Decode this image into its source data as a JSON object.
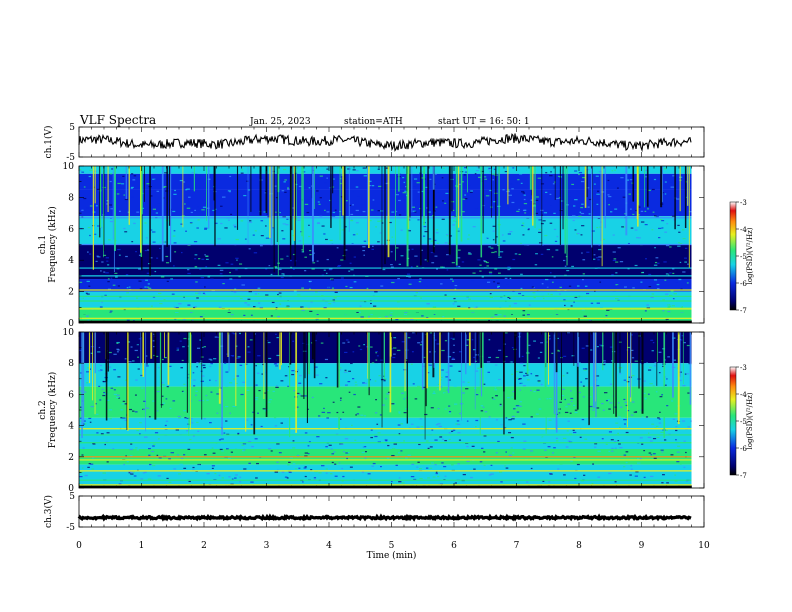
{
  "header": {
    "title": "VLF  Spectra",
    "date": "Jan. 25, 2023",
    "station": "station=ATH",
    "start": "start  UT  =   16: 50: 1"
  },
  "chart_data": [
    {
      "type": "line",
      "id": "ch1-waveform",
      "ylabel": "ch.1(V)",
      "ylim": [
        -5,
        5
      ],
      "yticks": [
        "5",
        "-5"
      ],
      "xlim": [
        0,
        10
      ],
      "trace_end_min": 9.8,
      "baseline_v": 0,
      "trace_color": "#000000"
    },
    {
      "type": "heatmap",
      "id": "ch1-spectrogram",
      "ylabel_line1": "ch.1",
      "ylabel_line2": "Frequency  (kHz)",
      "ylim": [
        0,
        10
      ],
      "yticks": [
        "10",
        "8",
        "6",
        "4",
        "2",
        "0"
      ],
      "xlim": [
        0,
        10
      ],
      "data_end_min": 9.8,
      "colorbar": {
        "label": "log(PSD)(V²/Hz)",
        "range": [
          -7,
          -3
        ],
        "ticks": [
          "-3",
          "-4",
          "-5",
          "-6",
          "-7"
        ]
      },
      "bands_khz": [
        {
          "from": 9.5,
          "to": 10.0,
          "level": "cyan"
        },
        {
          "from": 8.5,
          "to": 9.5,
          "level": "blue"
        },
        {
          "from": 6.8,
          "to": 8.5,
          "level": "blue"
        },
        {
          "from": 5.0,
          "to": 6.8,
          "level": "cyan"
        },
        {
          "from": 2.8,
          "to": 5.0,
          "level": "darkblue"
        },
        {
          "from": 2.0,
          "to": 2.8,
          "level": "blue"
        },
        {
          "from": 1.0,
          "to": 2.0,
          "level": "cyan"
        },
        {
          "from": 0.0,
          "to": 1.0,
          "level": "green"
        }
      ],
      "lines_khz": [
        {
          "f": 6.7,
          "level": "lightblue"
        },
        {
          "f": 5.0,
          "level": "lightblue"
        },
        {
          "f": 3.5,
          "level": "cyan"
        },
        {
          "f": 3.0,
          "level": "cyan"
        },
        {
          "f": 2.1,
          "level": "yellow"
        },
        {
          "f": 1.7,
          "level": "green"
        },
        {
          "f": 1.4,
          "level": "green"
        },
        {
          "f": 0.9,
          "level": "yellow"
        },
        {
          "f": 0.6,
          "level": "green"
        },
        {
          "f": 0.3,
          "level": "yellow"
        }
      ]
    },
    {
      "type": "heatmap",
      "id": "ch2-spectrogram",
      "ylabel_line1": "ch.2",
      "ylabel_line2": "Frequency  (kHz)",
      "ylim": [
        0,
        10
      ],
      "yticks": [
        "10",
        "8",
        "6",
        "4",
        "2",
        "0"
      ],
      "xlim": [
        0,
        10
      ],
      "data_end_min": 9.8,
      "colorbar": {
        "label": "log(PSD)(V²/Hz)",
        "range": [
          -7,
          -3
        ],
        "ticks": [
          "-3",
          "-4",
          "-5",
          "-6",
          "-7"
        ]
      },
      "bands_khz": [
        {
          "from": 8.0,
          "to": 10.0,
          "level": "darkblue"
        },
        {
          "from": 6.5,
          "to": 8.0,
          "level": "cyan"
        },
        {
          "from": 4.5,
          "to": 6.5,
          "level": "green"
        },
        {
          "from": 2.5,
          "to": 4.5,
          "level": "cyan"
        },
        {
          "from": 1.5,
          "to": 2.5,
          "level": "green"
        },
        {
          "from": 0.0,
          "to": 1.5,
          "level": "cyan"
        }
      ],
      "lines_khz": [
        {
          "f": 3.8,
          "level": "yellow"
        },
        {
          "f": 3.4,
          "level": "green"
        },
        {
          "f": 2.9,
          "level": "green"
        },
        {
          "f": 2.0,
          "level": "orange"
        },
        {
          "f": 1.8,
          "level": "yellow"
        },
        {
          "f": 1.1,
          "level": "yellow"
        },
        {
          "f": 0.5,
          "level": "green"
        },
        {
          "f": 0.2,
          "level": "yellow"
        }
      ]
    },
    {
      "type": "line",
      "id": "ch3-waveform",
      "ylabel": "ch.3(V)",
      "ylim": [
        -5,
        5
      ],
      "yticks": [
        "5",
        "-5"
      ],
      "xlim": [
        0,
        10
      ],
      "trace_end_min": 9.8,
      "baseline_v": -2,
      "trace_color": "#000000"
    }
  ],
  "xaxis": {
    "label": "Time  (min)",
    "ticks": [
      "0",
      "1",
      "2",
      "3",
      "4",
      "5",
      "6",
      "7",
      "8",
      "9",
      "10"
    ]
  },
  "colormap": {
    "darkblue": "#00006e",
    "blue": "#0a2ae0",
    "lightblue": "#3c8cff",
    "cyan": "#18d2e6",
    "green": "#28e67a",
    "yellow": "#e8f020",
    "orange": "#ff8c10",
    "red": "#e01010"
  }
}
